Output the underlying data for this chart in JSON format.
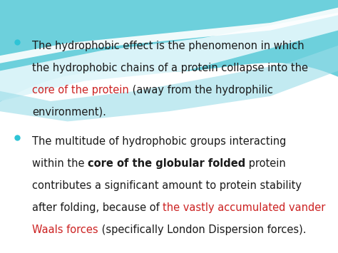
{
  "bg_color": "#ffffff",
  "bullet_color": "#2ec4d6",
  "text_color": "#1a1a1a",
  "red_color": "#cc2222",
  "font_size": 10.5,
  "bold_size": 10.5,
  "wave": {
    "teal_bg": "#6dd0dc",
    "teal_mid": "#9adce8",
    "white_stripe": "#e8f8fc",
    "light_top": "#b8eaf2"
  },
  "lines_b1": [
    [
      [
        "The hydrophobic effect is the phenomenon in which"
      ],
      [
        "normal"
      ]
    ],
    [
      [
        "the hydrophobic chains of a protein collapse into the"
      ],
      [
        "normal"
      ]
    ],
    [
      [
        "core of the protein",
        " (away from the hydrophilic"
      ],
      [
        "red",
        "normal"
      ]
    ],
    [
      [
        "environment)."
      ],
      [
        "normal"
      ]
    ]
  ],
  "lines_b2": [
    [
      [
        "The multitude of hydrophobic groups interacting"
      ],
      [
        "normal"
      ]
    ],
    [
      [
        "within the ",
        "core of the globular folded",
        " protein"
      ],
      [
        "normal",
        "bold",
        "normal"
      ]
    ],
    [
      [
        "contributes a significant amount to protein stability"
      ],
      [
        "normal"
      ]
    ],
    [
      [
        "after folding, because of ",
        "the vastly accumulated vander"
      ],
      [
        "normal",
        "red"
      ]
    ],
    [
      [
        "Waals forces",
        " (specifically London Dispersion forces)."
      ],
      [
        "red",
        "normal"
      ]
    ]
  ]
}
